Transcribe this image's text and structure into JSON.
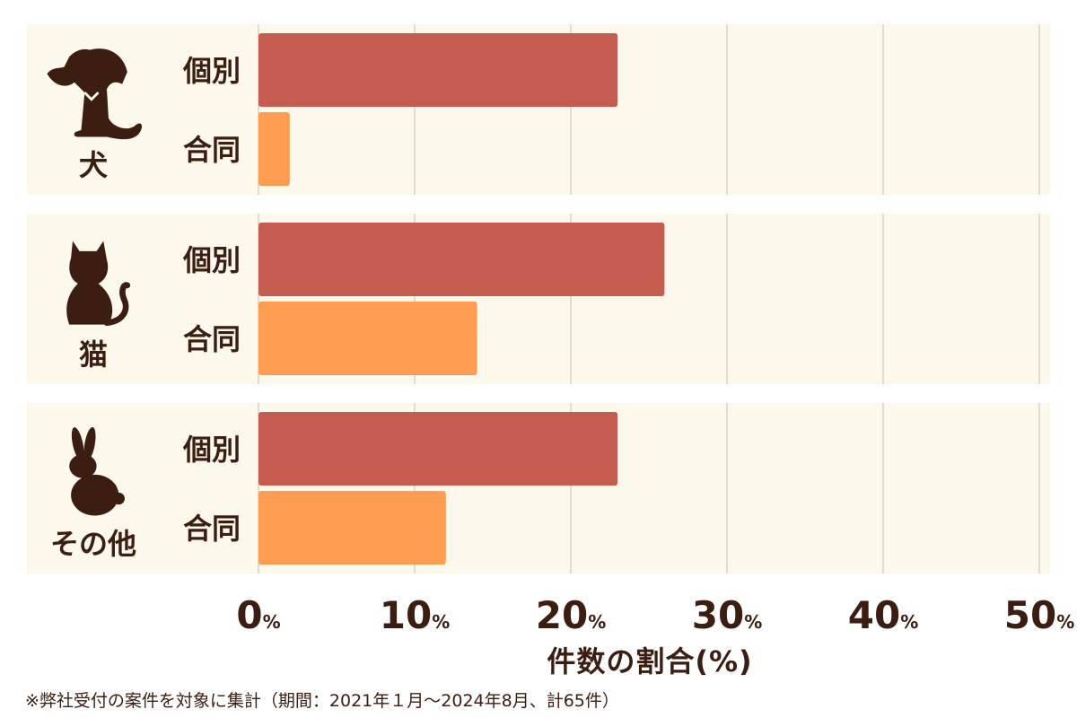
{
  "chart_data": {
    "type": "bar",
    "orientation": "horizontal",
    "groups": [
      {
        "name": "犬",
        "icon": "dog-icon",
        "bars": [
          {
            "label": "個別",
            "value": 23
          },
          {
            "label": "合同",
            "value": 2
          }
        ]
      },
      {
        "name": "猫",
        "icon": "cat-icon",
        "bars": [
          {
            "label": "個別",
            "value": 26
          },
          {
            "label": "合同",
            "value": 14
          }
        ]
      },
      {
        "name": "その他",
        "icon": "rabbit-icon",
        "bars": [
          {
            "label": "個別",
            "value": 23
          },
          {
            "label": "合同",
            "value": 12
          }
        ]
      }
    ],
    "xlim": [
      0,
      50
    ],
    "x_ticks": [
      0,
      10,
      20,
      30,
      40,
      50
    ],
    "tick_unit": "%",
    "xlabel": "件数の割合(%)",
    "grid": true,
    "colors": {
      "個別": "#c65c4f",
      "合同": "#fe9c52",
      "panel": "#fdf8ec",
      "text": "#3b1d12",
      "grid": "#d8d2c6"
    }
  },
  "footnote": "※弊社受付の案件を対象に集計（期間：2021年１月～2024年8月、計65件）"
}
